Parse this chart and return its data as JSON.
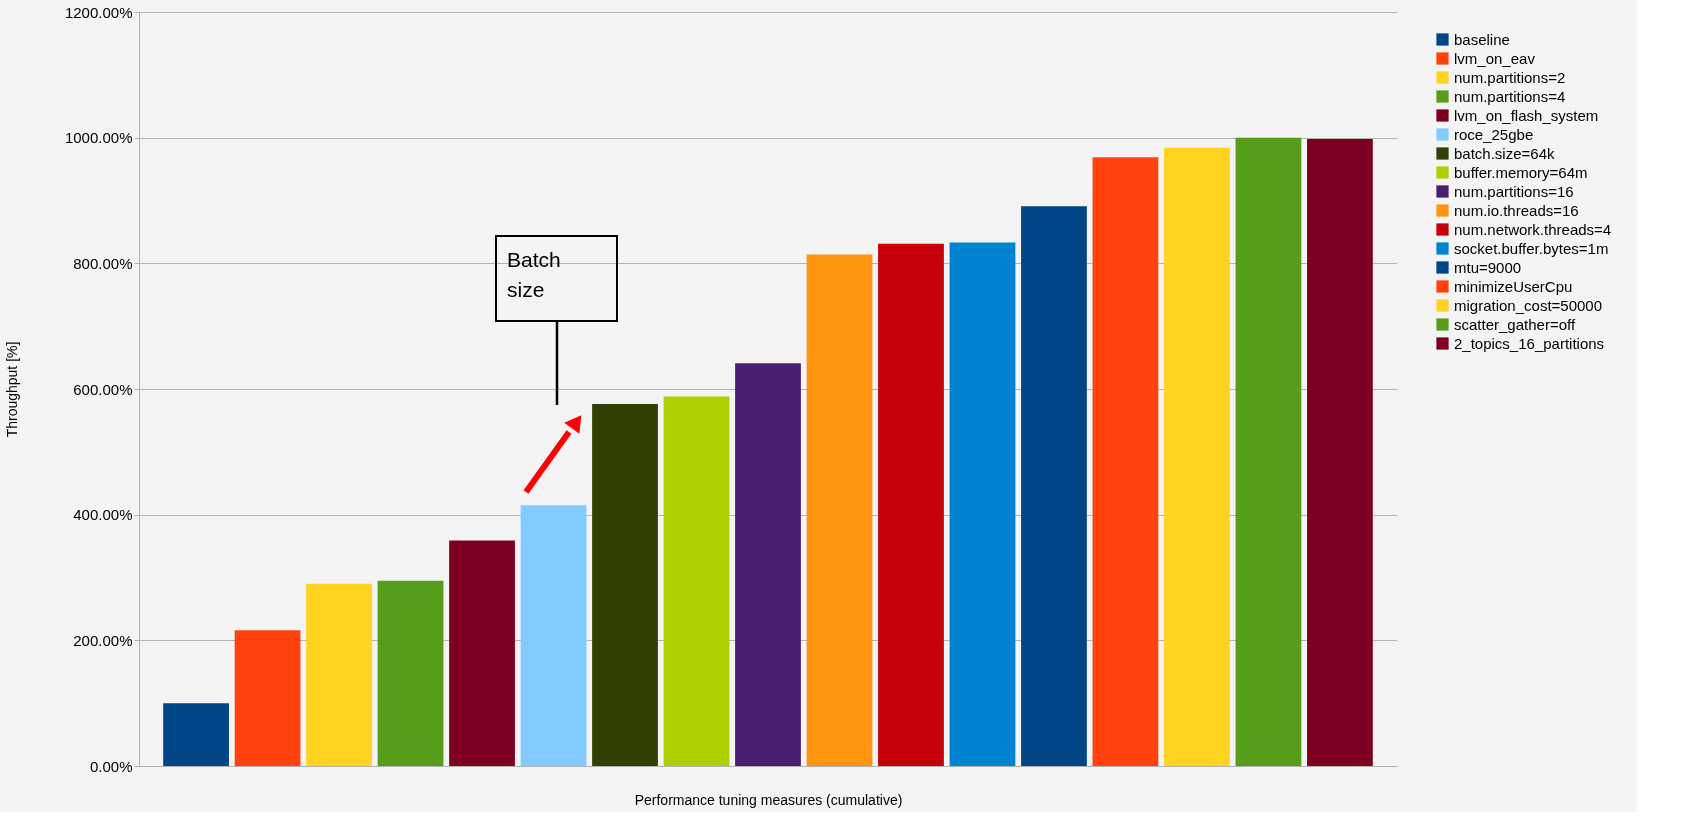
{
  "chart_data": {
    "type": "bar",
    "xlabel": "Performance tuning measures (cumulative)",
    "ylabel": "Throughput [%]",
    "annotations": [
      "Batch size"
    ],
    "categories": [
      null
    ],
    "series": [
      {
        "name": "baseline",
        "color": "#004586",
        "values": [
          100
        ]
      },
      {
        "name": "lvm_on_eav",
        "color": "#ff420e",
        "values": [
          216
        ]
      },
      {
        "name": "num.partitions=2",
        "color": "#ffd320",
        "values": [
          290
        ]
      },
      {
        "name": "num.partitions=4",
        "color": "#579d1c",
        "values": [
          295
        ]
      },
      {
        "name": "lvm_on_flash_system",
        "color": "#7e0021",
        "values": [
          359
        ]
      },
      {
        "name": "roce_25gbe",
        "color": "#83caff",
        "values": [
          415
        ]
      },
      {
        "name": "batch.size=64k",
        "color": "#314004",
        "values": [
          576
        ]
      },
      {
        "name": "buffer.memory=64m",
        "color": "#aecf00",
        "values": [
          588
        ]
      },
      {
        "name": "num.partitions=16",
        "color": "#4b1f6f",
        "values": [
          641
        ]
      },
      {
        "name": "num.io.threads=16",
        "color": "#ff950e",
        "values": [
          814
        ]
      },
      {
        "name": "num.network.threads=4",
        "color": "#c5000b",
        "values": [
          831
        ]
      },
      {
        "name": "socket.buffer.bytes=1m",
        "color": "#0084d1",
        "values": [
          833
        ]
      },
      {
        "name": "mtu=9000",
        "color": "#004586",
        "values": [
          891
        ]
      },
      {
        "name": "minimizeUserCpu",
        "color": "#ff420e",
        "values": [
          969
        ]
      },
      {
        "name": "migration_cost=50000",
        "color": "#ffd320",
        "values": [
          984
        ]
      },
      {
        "name": "scatter_gather=off",
        "color": "#579d1c",
        "values": [
          1000
        ]
      },
      {
        "name": "2_topics_16_partitions",
        "color": "#7e0021",
        "values": [
          998
        ]
      }
    ],
    "ylim": [
      0,
      1200
    ],
    "yticks": [
      {
        "value": 0,
        "label": "0.00%"
      },
      {
        "value": 200,
        "label": "200.00%"
      },
      {
        "value": 400,
        "label": "400.00%"
      },
      {
        "value": 600,
        "label": "600.00%"
      },
      {
        "value": 800,
        "label": "800.00%"
      },
      {
        "value": 1000,
        "label": "1000.00%"
      },
      {
        "value": 1200,
        "label": "1200.00%"
      }
    ],
    "grid": "y",
    "legend": "right"
  }
}
